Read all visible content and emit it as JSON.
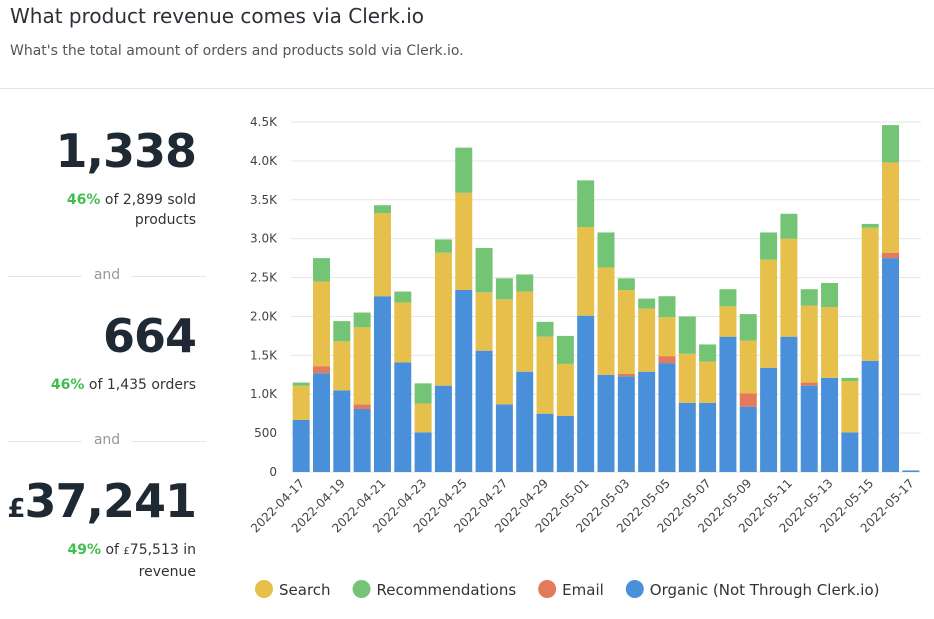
{
  "header": {
    "title": "What product revenue comes via Clerk.io",
    "subtitle": "What's the total amount of orders and products sold via Clerk.io."
  },
  "stats": [
    {
      "value": "1,338",
      "pct": "46%",
      "text": "of 2,899 sold products"
    },
    {
      "separator": "and"
    },
    {
      "value": "664",
      "pct": "46%",
      "text": "of 1,435 orders"
    },
    {
      "separator": "and"
    },
    {
      "currency": "£",
      "value": "37,241",
      "pct": "49%",
      "prefix": "of",
      "small_currency": "£",
      "text": "75,513 in revenue"
    }
  ],
  "chart_data": {
    "type": "stacked_bar",
    "categories": [
      "2022-04-17",
      null,
      "2022-04-19",
      null,
      "2022-04-21",
      null,
      "2022-04-23",
      null,
      "2022-04-25",
      null,
      "2022-04-27",
      null,
      "2022-04-29",
      null,
      "2022-05-01",
      null,
      "2022-05-03",
      null,
      "2022-05-05",
      null,
      "2022-05-07",
      null,
      "2022-05-09",
      null,
      "2022-05-11",
      null,
      "2022-05-13",
      null,
      "2022-05-15",
      null,
      "2022-05-17"
    ],
    "series": [
      {
        "name": "Search",
        "color": "#e6c04a",
        "values": [
          440,
          1090,
          630,
          990,
          1070,
          770,
          370,
          1710,
          1250,
          750,
          1350,
          1030,
          990,
          670,
          1140,
          1380,
          1080,
          810,
          500,
          630,
          530,
          390,
          680,
          1390,
          1260,
          990,
          910,
          660,
          1710,
          1160,
          0
        ]
      },
      {
        "name": "Recommendations",
        "color": "#74c476",
        "values": [
          40,
          300,
          260,
          190,
          100,
          140,
          260,
          170,
          580,
          570,
          270,
          220,
          190,
          360,
          600,
          450,
          150,
          130,
          270,
          480,
          220,
          220,
          340,
          350,
          320,
          210,
          310,
          40,
          50,
          480,
          0
        ]
      },
      {
        "name": "Email",
        "color": "#e27a5b",
        "values": [
          0,
          90,
          0,
          60,
          0,
          0,
          0,
          0,
          0,
          0,
          0,
          0,
          0,
          0,
          0,
          0,
          30,
          0,
          90,
          0,
          0,
          0,
          170,
          0,
          0,
          40,
          0,
          0,
          0,
          70,
          0
        ]
      },
      {
        "name": "Organic (Not Through Clerk.io)",
        "color": "#4a8fd9",
        "values": [
          670,
          1270,
          1050,
          810,
          2260,
          1410,
          510,
          1110,
          2340,
          1560,
          870,
          1290,
          750,
          720,
          2010,
          1250,
          1230,
          1290,
          1400,
          890,
          890,
          1740,
          840,
          1340,
          1740,
          1110,
          1210,
          510,
          1430,
          2750,
          20
        ]
      }
    ],
    "ylim": [
      0,
      4500
    ],
    "yticks": [
      0,
      500,
      {
        "value": 1000,
        "label": "1.0K"
      },
      {
        "value": 1500,
        "label": "1.5K"
      },
      {
        "value": 2000,
        "label": "2.0K"
      },
      {
        "value": 2500,
        "label": "2.5K"
      },
      {
        "value": 3000,
        "label": "3.0K"
      },
      {
        "value": 3500,
        "label": "3.5K"
      },
      {
        "value": 4000,
        "label": "4.0K"
      },
      {
        "value": 4500,
        "label": "4.5K"
      }
    ],
    "grid": true,
    "legend": "bottom"
  }
}
